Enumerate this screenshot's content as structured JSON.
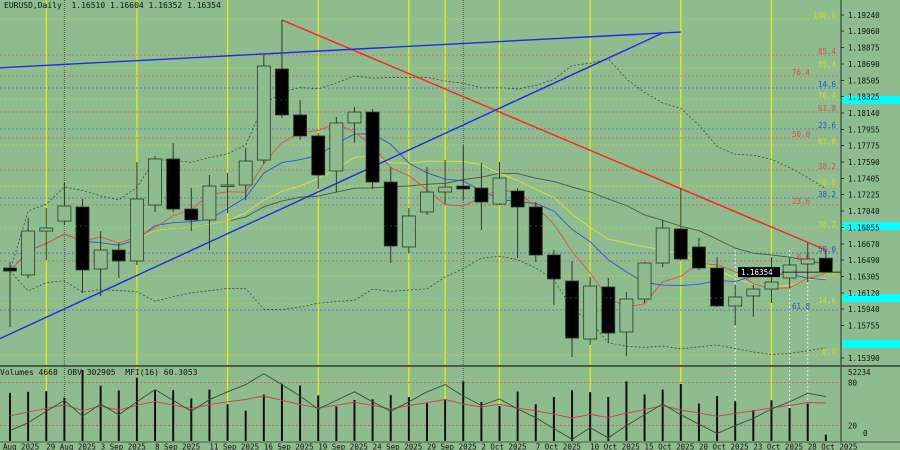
{
  "header": {
    "symbol": "EURUSD,Daily",
    "open": "1.16510",
    "high": "1.16604",
    "low": "1.16352",
    "close": "1.16354"
  },
  "indicator_header": {
    "volumes_label": "Volumes 4668",
    "obv_label": "OBV 302905",
    "mfi_label": "MFI(16) 60.3053"
  },
  "colors": {
    "background": "#8fbc8f",
    "bull_body": "#8fbc8f",
    "bear_body": "#000000",
    "trend_red": "#ff2020",
    "trend_blue": "#1a2ee0",
    "fib_yellow": "#d8d820",
    "fib_red": "#e04848",
    "fib_blue": "#3048e0",
    "highlight_cyan": "#00ffff"
  },
  "chart_data": {
    "type": "candlestick",
    "symbol": "EURUSD",
    "timeframe": "Daily",
    "ylim": [
      1.153,
      1.194
    ],
    "y_ticks": [
      "1.19240",
      "1.19060",
      "1.18875",
      "1.18690",
      "1.18505",
      "1.18325",
      "1.18140",
      "1.17955",
      "1.17775",
      "1.17590",
      "1.17405",
      "1.17225",
      "1.17040",
      "1.16855",
      "1.16670",
      "1.16490",
      "1.16305",
      "1.16120",
      "1.15940",
      "1.15755",
      "1.15390"
    ],
    "current_price": "1.16354",
    "highlight_levels": [
      1.18286,
      1.16872,
      1.16064,
      1.15547
    ],
    "candles": [
      [
        "2025-08-27",
        1.164,
        1.16467,
        1.15738,
        1.16366
      ],
      [
        "2025-08-28",
        1.16322,
        1.16961,
        1.16288,
        1.16815
      ],
      [
        "2025-08-29",
        1.16815,
        1.17073,
        1.1649,
        1.16849
      ],
      [
        "2025-09-01",
        1.16927,
        1.17354,
        1.16883,
        1.17096
      ],
      [
        "2025-09-02",
        1.17085,
        1.17175,
        1.16119,
        1.16378
      ],
      [
        "2025-09-03",
        1.16389,
        1.16815,
        1.16086,
        1.16602
      ],
      [
        "2025-09-04",
        1.16602,
        1.16681,
        1.16288,
        1.16479
      ],
      [
        "2025-09-05",
        1.16479,
        1.1759,
        1.16434,
        1.17175
      ],
      [
        "2025-09-08",
        1.17107,
        1.17657,
        1.17029,
        1.17624
      ],
      [
        "2025-09-09",
        1.17624,
        1.17803,
        1.17029,
        1.17062
      ],
      [
        "2025-09-10",
        1.17062,
        1.17298,
        1.16815,
        1.16939
      ],
      [
        "2025-09-11",
        1.16939,
        1.17444,
        1.16602,
        1.1732
      ],
      [
        "2025-09-12",
        1.1732,
        1.17466,
        1.17017,
        1.17332
      ],
      [
        "2025-09-15",
        1.17332,
        1.17747,
        1.17163,
        1.17601
      ],
      [
        "2025-09-16",
        1.17612,
        1.18791,
        1.17567,
        1.18668
      ],
      [
        "2025-09-17",
        1.18634,
        1.19184,
        1.18084,
        1.18118
      ],
      [
        "2025-09-18",
        1.18118,
        1.18286,
        1.17837,
        1.17882
      ],
      [
        "2025-09-19",
        1.17882,
        1.17915,
        1.17287,
        1.17444
      ],
      [
        "2025-09-22",
        1.17489,
        1.18095,
        1.17253,
        1.18028
      ],
      [
        "2025-09-23",
        1.18028,
        1.18207,
        1.17803,
        1.18151
      ],
      [
        "2025-09-24",
        1.18151,
        1.18185,
        1.17287,
        1.17365
      ],
      [
        "2025-09-25",
        1.17365,
        1.17534,
        1.16456,
        1.16647
      ],
      [
        "2025-09-26",
        1.16636,
        1.17073,
        1.16568,
        1.16984
      ],
      [
        "2025-09-29",
        1.17029,
        1.17534,
        1.16995,
        1.17253
      ],
      [
        "2025-09-30",
        1.17253,
        1.17612,
        1.17118,
        1.17309
      ],
      [
        "2025-10-01",
        1.1732,
        1.17781,
        1.17163,
        1.17287
      ],
      [
        "2025-10-02",
        1.17298,
        1.17579,
        1.16827,
        1.17141
      ],
      [
        "2025-10-03",
        1.17118,
        1.1759,
        1.17107,
        1.1741
      ],
      [
        "2025-10-06",
        1.17264,
        1.17298,
        1.16512,
        1.17085
      ],
      [
        "2025-10-07",
        1.17085,
        1.17141,
        1.16467,
        1.16546
      ],
      [
        "2025-10-08",
        1.16546,
        1.16602,
        1.15985,
        1.16277
      ],
      [
        "2025-10-09",
        1.16254,
        1.16479,
        1.15401,
        1.15614
      ],
      [
        "2025-10-10",
        1.15603,
        1.16299,
        1.15536,
        1.16198
      ],
      [
        "2025-10-13",
        1.16187,
        1.16288,
        1.15558,
        1.1567
      ],
      [
        "2025-10-14",
        1.15682,
        1.16131,
        1.15412,
        1.16052
      ],
      [
        "2025-10-15",
        1.16052,
        1.16467,
        1.16007,
        1.16456
      ],
      [
        "2025-10-16",
        1.16456,
        1.16939,
        1.16411,
        1.16849
      ],
      [
        "2025-10-17",
        1.16838,
        1.17298,
        1.1649,
        1.16501
      ],
      [
        "2025-10-20",
        1.16636,
        1.16737,
        1.16378,
        1.164
      ],
      [
        "2025-10-21",
        1.164,
        1.16524,
        1.15962,
        1.15974
      ],
      [
        "2025-10-22",
        1.15974,
        1.16209,
        1.1576,
        1.16075
      ],
      [
        "2025-10-23",
        1.16086,
        1.16209,
        1.1585,
        1.16164
      ],
      [
        "2025-10-24",
        1.16164,
        1.16524,
        1.16007,
        1.16243
      ],
      [
        "2025-10-27",
        1.16288,
        1.16512,
        1.16176,
        1.16434
      ],
      [
        "2025-10-28",
        1.16445,
        1.16681,
        1.16243,
        1.16501
      ],
      [
        "2025-10-29",
        1.1651,
        1.16604,
        1.16352,
        1.16354
      ]
    ],
    "volumes": [
      35460,
      36180,
      36660,
      31870,
      52234,
      40730,
      37140,
      46720,
      37140,
      37380,
      31390,
      37860,
      27080,
      22280,
      34260,
      42170,
      40730,
      33540,
      25400,
      30190,
      30670,
      33780,
      32350,
      27790,
      30670,
      43850,
      28750,
      25880,
      36420,
      27080,
      32350,
      37380,
      35940,
      32350,
      43850,
      34260,
      37860,
      41930,
      27560,
      33070,
      29230,
      22760,
      29950,
      24200,
      27560,
      4668
    ],
    "mfi": [
      13,
      24,
      40,
      55,
      33,
      50,
      35,
      53,
      70,
      55,
      40,
      56,
      67,
      77,
      92,
      77,
      61,
      43,
      55,
      67,
      53,
      40,
      53,
      67,
      77,
      61,
      48,
      57,
      43,
      31,
      16,
      1,
      17,
      3,
      20,
      35,
      50,
      35,
      22,
      9,
      20,
      30,
      43,
      53,
      65,
      60.3
    ],
    "volume_axis_max": "52234",
    "mfi_levels": [
      "80",
      "20",
      "0"
    ],
    "fib_levels": [
      {
        "label": "100.0",
        "price": 1.19195,
        "color": "yellow"
      },
      {
        "label": "85.4",
        "price": 1.18791,
        "color": "red"
      },
      {
        "label": "85.4",
        "price": 1.18645,
        "color": "yellow"
      },
      {
        "label": "76.4",
        "price": 1.18555,
        "color": "red"
      },
      {
        "label": "14.6",
        "price": 1.18421,
        "color": "blue"
      },
      {
        "label": "76.4",
        "price": 1.18297,
        "color": "yellow"
      },
      {
        "label": "61.8",
        "price": 1.18151,
        "color": "red"
      },
      {
        "label": "23.6",
        "price": 1.1796,
        "color": "blue"
      },
      {
        "label": "50.0",
        "price": 1.17859,
        "color": "red"
      },
      {
        "label": "61.8",
        "price": 1.17781,
        "color": "yellow"
      },
      {
        "label": "38.2",
        "price": 1.175,
        "color": "red"
      },
      {
        "label": "50.0",
        "price": 1.1732,
        "color": "yellow"
      },
      {
        "label": "38.2",
        "price": 1.17186,
        "color": "blue"
      },
      {
        "label": "23.6",
        "price": 1.17107,
        "color": "red"
      },
      {
        "label": "38.2",
        "price": 1.16849,
        "color": "yellow"
      },
      {
        "label": "50.0",
        "price": 1.16568,
        "color": "blue"
      },
      {
        "label": "0.0",
        "price": 1.16479,
        "color": "red"
      },
      {
        "label": "23.6",
        "price": 1.1631,
        "color": "yellow"
      },
      {
        "label": "14.6",
        "price": 1.15996,
        "color": "yellow"
      },
      {
        "label": "61.8",
        "price": 1.15929,
        "color": "blue"
      },
      {
        "label": "0.0",
        "price": 1.15424,
        "color": "yellow"
      }
    ],
    "trend_lines": [
      {
        "color": "red",
        "from": [
          "2025-09-17",
          1.19184
        ],
        "to": [
          "2025-10-29",
          1.16602
        ]
      },
      {
        "color": "blue",
        "from": [
          "2025-08-26",
          1.18645
        ],
        "to": [
          "2025-10-17",
          1.19049
        ]
      },
      {
        "color": "blue",
        "from": [
          "2025-08-26",
          1.15592
        ],
        "to": [
          "2025-10-16",
          1.19038
        ]
      }
    ],
    "vertical_markers": {
      "yellow": [
        "2025-08-29",
        "2025-09-05",
        "2025-09-12",
        "2025-09-19",
        "2025-09-26",
        "2025-09-30",
        "2025-10-03",
        "2025-10-10",
        "2025-10-17",
        "2025-10-24"
      ],
      "gray": [
        "2025-09-01",
        "2025-10-01"
      ],
      "white": [
        "2025-10-22",
        "2025-10-27",
        "2025-10-28"
      ]
    },
    "x_labels": [
      {
        "text": "Aug 2025",
        "date": "2025-08-27"
      },
      {
        "text": "29 Aug 2025",
        "date": "2025-08-29"
      },
      {
        "text": "3 Sep 2025",
        "date": "2025-09-03"
      },
      {
        "text": "8 Sep 2025",
        "date": "2025-09-08"
      },
      {
        "text": "11 Sep 2025",
        "date": "2025-09-11"
      },
      {
        "text": "16 Sep 2025",
        "date": "2025-09-16"
      },
      {
        "text": "19 Sep 2025",
        "date": "2025-09-19"
      },
      {
        "text": "24 Sep 2025",
        "date": "2025-09-24"
      },
      {
        "text": "29 Sep 2025",
        "date": "2025-09-29"
      },
      {
        "text": "2 Oct 2025",
        "date": "2025-10-02"
      },
      {
        "text": "7 Oct 2025",
        "date": "2025-10-07"
      },
      {
        "text": "10 Oct 2025",
        "date": "2025-10-10"
      },
      {
        "text": "15 Oct 2025",
        "date": "2025-10-15"
      },
      {
        "text": "20 Oct 2025",
        "date": "2025-10-20"
      },
      {
        "text": "23 Oct 2025",
        "date": "2025-10-23"
      },
      {
        "text": "28 Oct 2025",
        "date": "2025-10-28"
      }
    ]
  }
}
